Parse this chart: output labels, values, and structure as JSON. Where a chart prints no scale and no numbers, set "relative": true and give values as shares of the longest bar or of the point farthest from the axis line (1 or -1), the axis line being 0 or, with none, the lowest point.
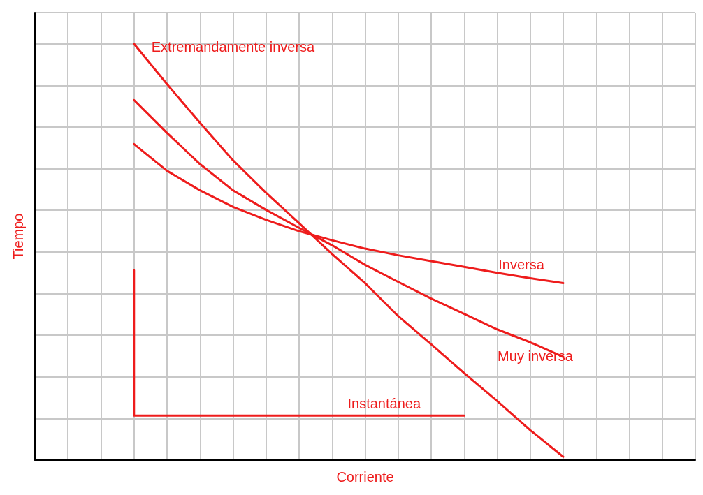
{
  "chart_data": {
    "type": "line",
    "relative": true,
    "xlabel": "Corriente",
    "ylabel": "Tiempo",
    "grid": true,
    "legend": false,
    "marker": "none",
    "line_style": "solid",
    "categories": [
      null,
      null,
      null,
      null,
      null,
      null,
      null,
      null,
      null,
      null,
      null,
      null,
      null,
      null,
      null,
      null,
      null,
      null,
      null,
      null,
      null
    ],
    "series": [
      {
        "name": "Extremandamente inversa",
        "color": "#ee1c1c",
        "values": [
          null,
          null,
          null,
          1.0,
          0.903,
          0.81,
          0.72,
          0.642,
          0.569,
          0.495,
          0.425,
          0.346,
          0.278,
          0.209,
          0.142,
          0.072,
          0.008,
          null,
          null,
          null,
          null
        ]
      },
      {
        "name": "Muy inversa",
        "color": "#ee1c1c",
        "values": [
          null,
          null,
          null,
          0.865,
          0.786,
          0.711,
          0.648,
          0.601,
          0.558,
          0.516,
          0.469,
          0.428,
          0.388,
          0.351,
          0.314,
          0.283,
          0.248,
          null,
          null,
          null,
          null
        ]
      },
      {
        "name": "Inversa",
        "color": "#ee1c1c",
        "values": [
          null,
          null,
          null,
          0.759,
          0.695,
          0.648,
          0.608,
          0.577,
          0.55,
          0.528,
          0.508,
          0.492,
          0.478,
          0.464,
          0.45,
          0.437,
          0.425,
          null,
          null,
          null,
          null
        ]
      },
      {
        "name": "Instantánea",
        "type": "step",
        "color": "#ee1c1c",
        "values": [
          null,
          null,
          null,
          0.456,
          0.107,
          0.107,
          0.107,
          0.107,
          0.107,
          0.107,
          0.107,
          0.107,
          0.107,
          0.107,
          null,
          null,
          null,
          null,
          null,
          null,
          null
        ]
      }
    ]
  }
}
